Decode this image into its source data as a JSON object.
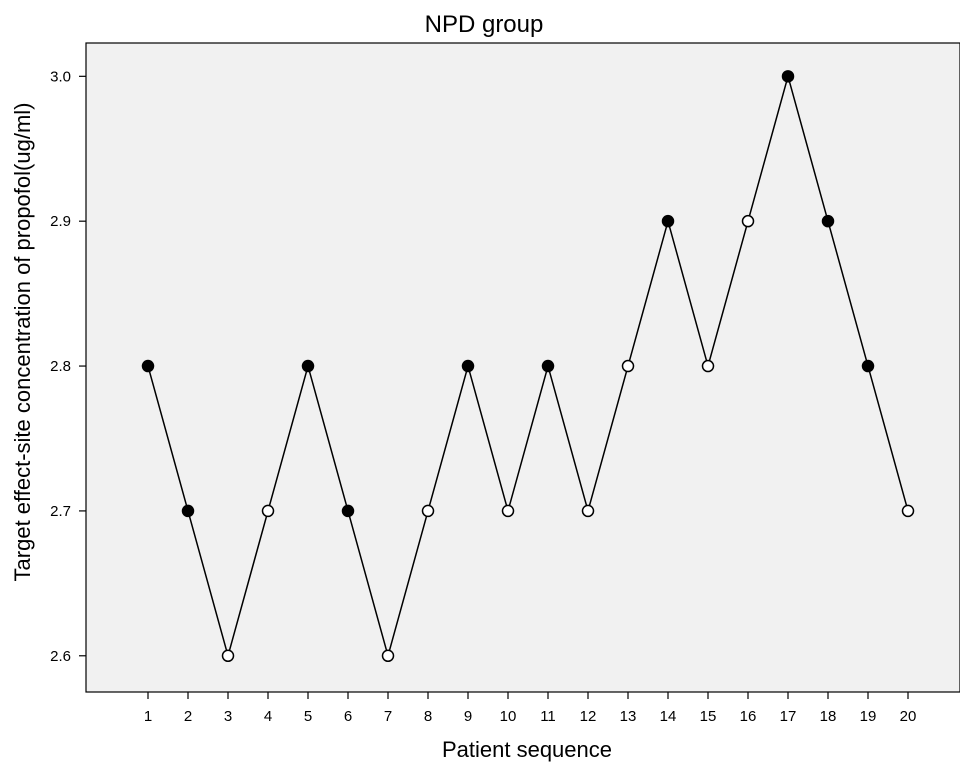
{
  "chart_data": {
    "type": "line",
    "title": "NPD group",
    "xlabel": "Patient sequence",
    "ylabel": "Target effect-site concentration of propofol(ug/ml)",
    "x": [
      1,
      2,
      3,
      4,
      5,
      6,
      7,
      8,
      9,
      10,
      11,
      12,
      13,
      14,
      15,
      16,
      17,
      18,
      19,
      20
    ],
    "y": [
      2.8,
      2.7,
      2.6,
      2.7,
      2.8,
      2.7,
      2.6,
      2.7,
      2.8,
      2.7,
      2.8,
      2.7,
      2.8,
      2.9,
      2.8,
      2.9,
      3.0,
      2.9,
      2.8,
      2.7
    ],
    "marker_fill": [
      true,
      true,
      false,
      false,
      true,
      true,
      false,
      false,
      true,
      false,
      true,
      false,
      false,
      true,
      false,
      false,
      true,
      true,
      true,
      false
    ],
    "yticks": [
      "2.6",
      "2.7",
      "2.8",
      "2.9",
      "3.0"
    ],
    "xticks": [
      "1",
      "2",
      "3",
      "4",
      "5",
      "6",
      "7",
      "8",
      "9",
      "10",
      "11",
      "12",
      "13",
      "14",
      "15",
      "16",
      "17",
      "18",
      "19",
      "20"
    ],
    "ylim": [
      2.575,
      3.023
    ],
    "xlim": [
      -0.55,
      21.3
    ],
    "grid": false,
    "colors": {
      "plot_background": "#f1f1f1",
      "line": "#000000",
      "filled_marker": "#000000",
      "open_marker": "#ffffff"
    }
  }
}
